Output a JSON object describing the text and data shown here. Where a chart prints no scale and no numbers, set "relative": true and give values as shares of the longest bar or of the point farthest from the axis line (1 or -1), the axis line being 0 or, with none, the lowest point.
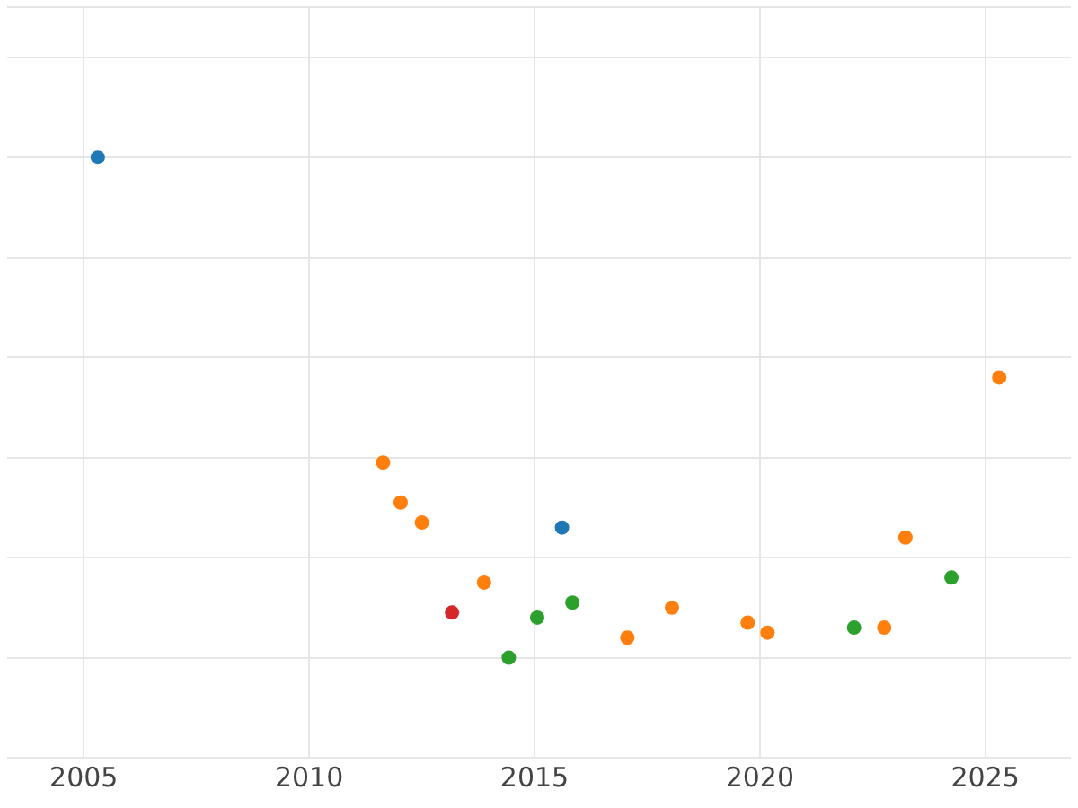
{
  "chart_data": {
    "type": "scatter",
    "relative": true,
    "grid": true,
    "legend": false,
    "marker": "circle",
    "xlim": [
      2003.3,
      2026.9
    ],
    "xticks": [
      2005,
      2010,
      2015,
      2020,
      2025
    ],
    "tick_labels": "x",
    "series": [
      {
        "color": "#1f77b4",
        "x": [
          2005.31,
          2015.61
        ],
        "values": [
          1,
          0.26
        ]
      },
      {
        "color": "#ff7f0e",
        "x": [
          2011.64,
          2012.03,
          2012.5,
          2013.88,
          2017.06,
          2018.05,
          2019.73,
          2020.17,
          2022.76,
          2023.23,
          2025.31
        ],
        "values": [
          0.39,
          0.31,
          0.27,
          0.15,
          0.04,
          0.1,
          0.07,
          0.05,
          0.06,
          0.24,
          0.56
        ]
      },
      {
        "color": "#2ca02c",
        "x": [
          2014.43,
          2015.06,
          2015.84,
          2022.09,
          2024.25
        ],
        "values": [
          0,
          0.08,
          0.11,
          0.06,
          0.16
        ]
      },
      {
        "color": "#d62728",
        "x": [
          2013.17
        ],
        "values": [
          0.09
        ]
      }
    ]
  }
}
